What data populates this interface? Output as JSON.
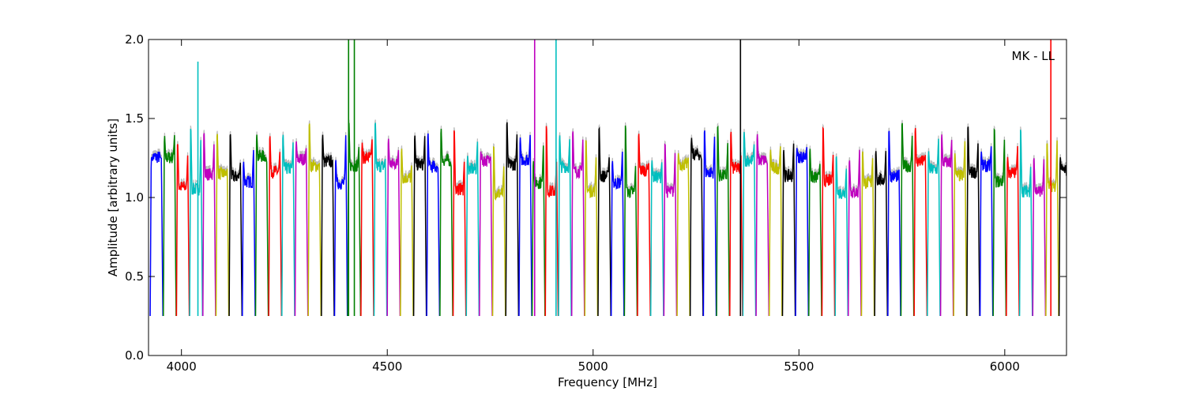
{
  "chart_data": {
    "type": "line",
    "title": "",
    "xlabel": "Frequency [MHz]",
    "ylabel": "Amplitude [arbitrary units]",
    "annotation": "MK - LL",
    "xlim": [
      3920,
      6150
    ],
    "ylim": [
      0.0,
      2.0
    ],
    "xticks": [
      4000,
      4500,
      5000,
      5500,
      6000
    ],
    "xtick_labels": [
      "4000",
      "4500",
      "5000",
      "5500",
      "6000"
    ],
    "yticks": [
      0.0,
      0.5,
      1.0,
      1.5,
      2.0
    ],
    "ytick_labels": [
      "0.0",
      "0.5",
      "1.0",
      "1.5",
      "2.0"
    ],
    "grid": false,
    "legend": "none",
    "background_series_color": "#bbbbbb",
    "color_cycle": [
      "#0000ff",
      "#008000",
      "#ff0000",
      "#00bfbf",
      "#bf00bf",
      "#bfbf00",
      "#000000"
    ],
    "channel_width_mhz": 32,
    "channel_start_mhz": 3924,
    "channel_count": 70,
    "typical_channel_profile": {
      "edge_low": 0.25,
      "peak_low_edge": 1.4,
      "mid": 1.15,
      "peak_high_edge": 1.3
    },
    "spikes": [
      {
        "x": 4040,
        "y": 1.86,
        "color": "#00bfbf"
      },
      {
        "x": 4406,
        "y": 2.0,
        "color": "#008000"
      },
      {
        "x": 4420,
        "y": 2.0,
        "color": "#008000"
      },
      {
        "x": 4858,
        "y": 2.0,
        "color": "#bf00bf"
      },
      {
        "x": 4910,
        "y": 2.0,
        "color": "#00bfbf"
      },
      {
        "x": 5358,
        "y": 2.0,
        "color": "#000000"
      },
      {
        "x": 6112,
        "y": 2.0,
        "color": "#ff0000"
      }
    ]
  }
}
